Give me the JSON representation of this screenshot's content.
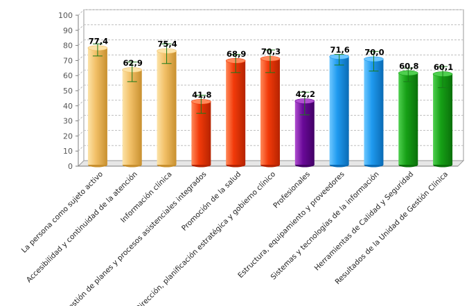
{
  "chart_data": {
    "type": "bar",
    "title": "",
    "xlabel": "",
    "ylabel": "",
    "ylim": [
      0,
      100
    ],
    "yticks": [
      0,
      10,
      20,
      30,
      40,
      50,
      60,
      70,
      80,
      90,
      100
    ],
    "grid": true,
    "categories": [
      "La persona como sujeto activo",
      "Accesibilidad y continuidad de la atención",
      "Información clínica",
      "Gestión de planes y procesos asistenciales integrados",
      "Promoción de la salud",
      "Dirección, planificación estratégica y gobierno clínico",
      "Profesionales",
      "Estructura, equipamiento y proveedores",
      "Sistemas y tecnologías de la información",
      "Herramientas de Calidad y Seguridad",
      "Resultados de la Unidad de Gestión Clínica"
    ],
    "values": [
      77.4,
      62.9,
      75.4,
      41.8,
      68.9,
      70.3,
      42.2,
      71.6,
      70.0,
      60.8,
      60.1
    ],
    "value_labels": [
      "77,4",
      "62,9",
      "75,4",
      "41,8",
      "68,9",
      "70,3",
      "42,2",
      "71,6",
      "70,0",
      "60,8",
      "60,1"
    ],
    "error_low": [
      73,
      56,
      68,
      35,
      62,
      62,
      34,
      67,
      63,
      56,
      52
    ],
    "error_high": [
      81,
      69,
      81,
      47,
      74,
      77,
      49,
      74,
      76,
      65,
      66
    ],
    "colors": {
      "light": [
        "#fce3a8",
        "#fce3a8",
        "#fce3a8",
        "#ff8a5a",
        "#ff8a5a",
        "#ff8a5a",
        "#b04fd0",
        "#6ec8ff",
        "#6ec8ff",
        "#4fcf4f",
        "#4fcf4f"
      ],
      "base": [
        "#f2c068",
        "#f2c068",
        "#f2c068",
        "#f23a0a",
        "#f23a0a",
        "#f23a0a",
        "#6a0a99",
        "#1f9aef",
        "#1f9aef",
        "#16a016",
        "#16a016"
      ],
      "dark": [
        "#c8902f",
        "#c8902f",
        "#c8902f",
        "#b52300",
        "#b52300",
        "#b52300",
        "#420066",
        "#0a6bb5",
        "#0a6bb5",
        "#0a700a",
        "#0a700a"
      ],
      "error_bar": "#1a7a1a"
    }
  }
}
